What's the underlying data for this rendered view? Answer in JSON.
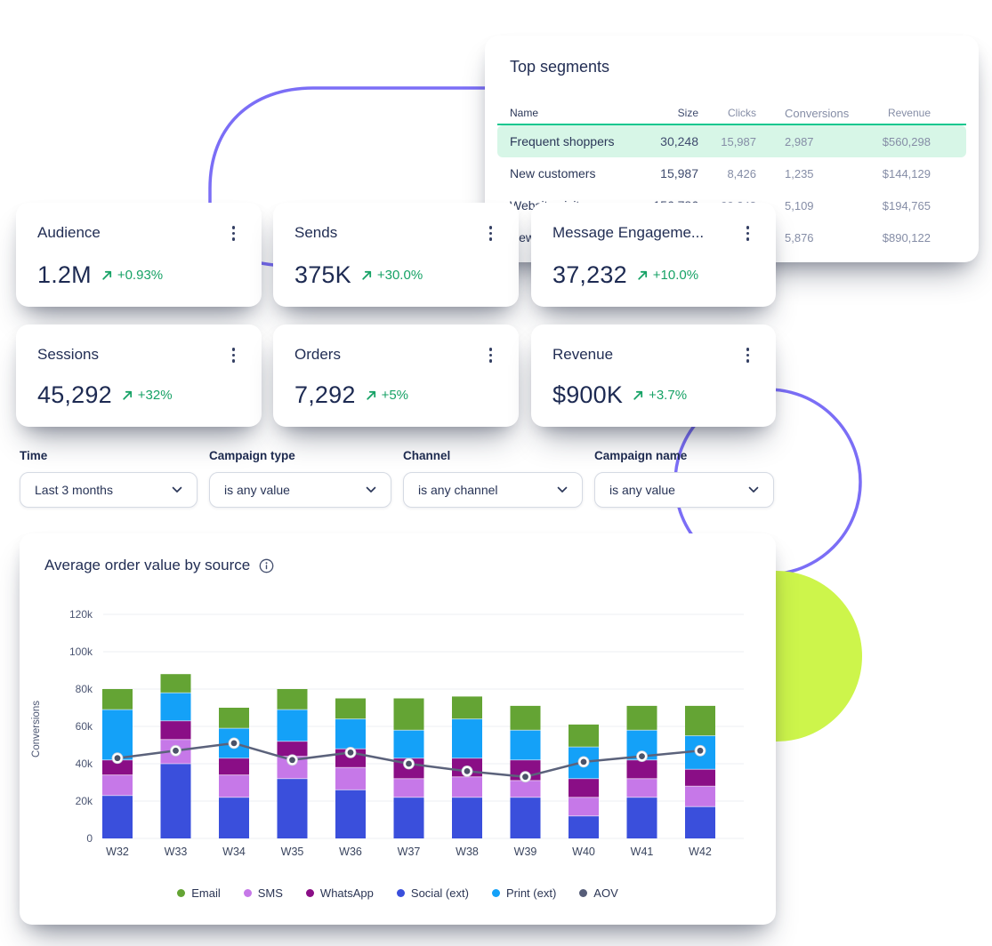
{
  "colors": {
    "accent_green": "#17a266",
    "table_underline": "#12c78f",
    "row_highlight": "#d7f6e7",
    "navy": "#222e54",
    "muted_text": "#858da6",
    "indigo_decor": "#7b6ef6",
    "lime_decor": "#cdf54b",
    "gridline": "#edeff3",
    "aov_line": "#5b627b",
    "aov_dot": "#4b5268"
  },
  "top_segments": {
    "title": "Top segments",
    "columns": [
      "Name",
      "Size",
      "Clicks",
      "Conversions",
      "Revenue"
    ],
    "rows": [
      [
        "Frequent shoppers",
        "30,248",
        "15,987",
        "2,987",
        "$560,298"
      ],
      [
        "New customers",
        "15,987",
        "8,426",
        "1,235",
        "$144,129"
      ],
      [
        "Website visitors",
        "156,786",
        "99,248",
        "5,109",
        "$194,765"
      ],
      [
        "New",
        "",
        "",
        "5,876",
        "$890,122"
      ]
    ],
    "highlighted_row_index": 0
  },
  "metric_cards": [
    {
      "label": "Audience",
      "value": "1.2M",
      "delta": "+0.93%"
    },
    {
      "label": "Sends",
      "value": "375K",
      "delta": "+30.0%"
    },
    {
      "label": "Message Engageme...",
      "value": "37,232",
      "delta": "+10.0%"
    },
    {
      "label": "Sessions",
      "value": "45,292",
      "delta": "+32%"
    },
    {
      "label": "Orders",
      "value": "7,292",
      "delta": "+5%"
    },
    {
      "label": "Revenue",
      "value": "$900K",
      "delta": "+3.7%"
    }
  ],
  "filters": [
    {
      "label": "Time",
      "value": "Last 3 months"
    },
    {
      "label": "Campaign type",
      "value": "is any value"
    },
    {
      "label": "Channel",
      "value": "is any channel"
    },
    {
      "label": "Campaign name",
      "value": "is any value"
    }
  ],
  "chart_data": {
    "type": "bar",
    "subtype": "stacked-bars-with-line-overlay",
    "title": "Average order value by source",
    "ylabel": "Conversions",
    "x": [
      "W32",
      "W33",
      "W34",
      "W35",
      "W36",
      "W37",
      "W38",
      "W39",
      "W40",
      "W41",
      "W42"
    ],
    "ylim": [
      0,
      120000
    ],
    "ytick_labels": [
      "0",
      "20k",
      "40k",
      "60k",
      "80k",
      "100k",
      "120k"
    ],
    "values_unit": "thousands",
    "grid": "horizontal",
    "legend_position": "bottom-center",
    "series": [
      {
        "name": "Social (ext)",
        "color": "#3a4fdc",
        "values": [
          23,
          40,
          22,
          32,
          26,
          22,
          22,
          22,
          12,
          22,
          17
        ]
      },
      {
        "name": "SMS",
        "color": "#c678e8",
        "values": [
          11,
          13,
          12,
          12,
          12,
          10,
          11,
          9,
          10,
          10,
          11
        ]
      },
      {
        "name": "WhatsApp",
        "color": "#8a0e86",
        "values": [
          8,
          10,
          9,
          8,
          10,
          11,
          10,
          11,
          10,
          10,
          9
        ]
      },
      {
        "name": "Print (ext)",
        "color": "#14a1f8",
        "values": [
          27,
          15,
          16,
          17,
          16,
          15,
          21,
          16,
          17,
          16,
          18
        ]
      },
      {
        "name": "Email",
        "color": "#64a434",
        "values": [
          11,
          10,
          11,
          11,
          11,
          17,
          12,
          13,
          12,
          13,
          16
        ]
      }
    ],
    "line_series": {
      "name": "AOV",
      "color": "#565d79",
      "values": [
        43,
        47,
        51,
        42,
        46,
        40,
        36,
        33,
        41,
        44,
        47
      ]
    },
    "legend_order": [
      "Email",
      "SMS",
      "WhatsApp",
      "Social (ext)",
      "Print (ext)",
      "AOV"
    ]
  }
}
